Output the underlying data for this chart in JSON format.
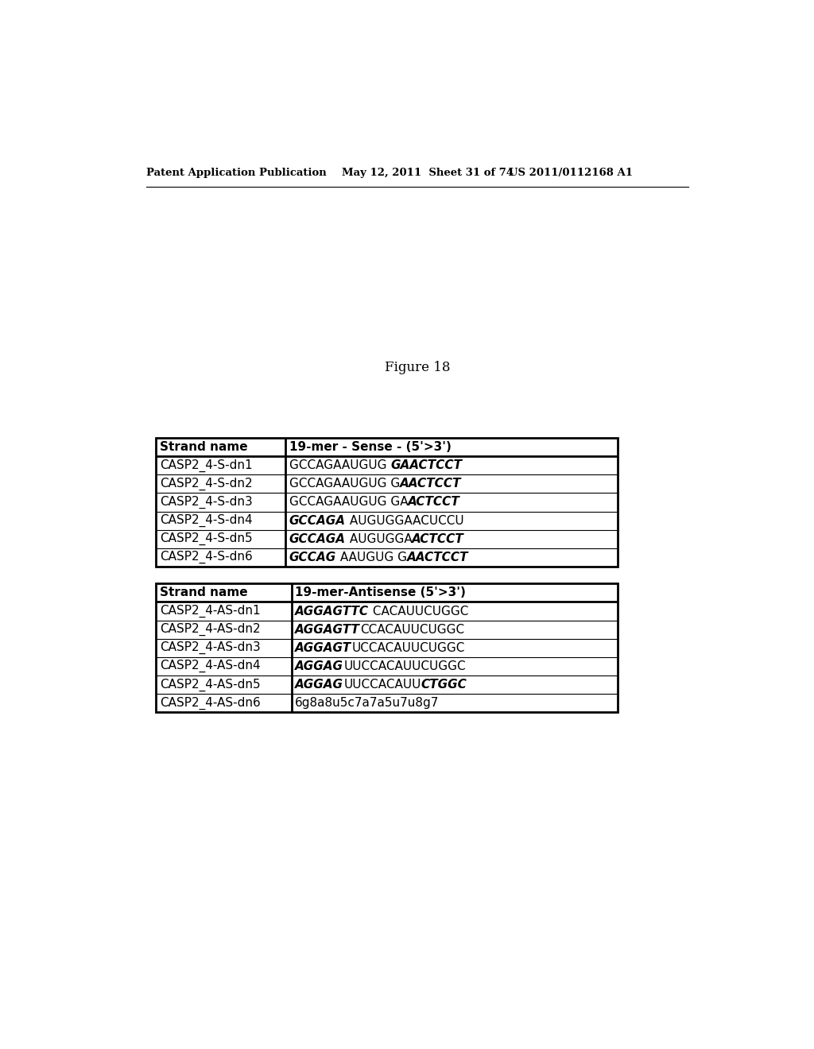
{
  "header_left": "Patent Application Publication",
  "header_mid": "May 12, 2011  Sheet 31 of 74",
  "header_right": "US 2011/0112168 A1",
  "figure_label": "Figure 18",
  "table1_header": [
    "Strand name",
    "19-mer - Sense - (5'>3')"
  ],
  "table1_col1": [
    "CASP2_4-S-dn1",
    "CASP2_4-S-dn2",
    "CASP2_4-S-dn3",
    "CASP2_4-S-dn4",
    "CASP2_4-S-dn5",
    "CASP2_4-S-dn6"
  ],
  "table1_seq": [
    [
      [
        "GCCAGAAUGUG ",
        false
      ],
      [
        "GAACTCCT",
        true
      ]
    ],
    [
      [
        "GCCAGAAUGUG G",
        false
      ],
      [
        "AACTCCT",
        true
      ]
    ],
    [
      [
        "GCCAGAAUGUG GA",
        false
      ],
      [
        "ACTCCT",
        true
      ]
    ],
    [
      [
        "GCCAGA",
        true
      ],
      [
        " AUGUGGAACUCCU",
        false
      ]
    ],
    [
      [
        "GCCAGA",
        true
      ],
      [
        " AUGUGGA",
        false
      ],
      [
        "ACTCCT",
        true
      ]
    ],
    [
      [
        "GCCAG",
        true
      ],
      [
        " AAUGUG G",
        false
      ],
      [
        "AACTCCT",
        true
      ]
    ]
  ],
  "table2_header": [
    "Strand name",
    "19-mer-Antisense (5'>3')"
  ],
  "table2_col1": [
    "CASP2_4-AS-dn1",
    "CASP2_4-AS-dn2",
    "CASP2_4-AS-dn3",
    "CASP2_4-AS-dn4",
    "CASP2_4-AS-dn5",
    "CASP2_4-AS-dn6"
  ],
  "table2_seq": [
    [
      [
        "AGGAGTTC",
        true
      ],
      [
        " CACAUUCUGGC",
        false
      ]
    ],
    [
      [
        "AGGAGTT",
        true
      ],
      [
        "CCACAUUCUGGC",
        false
      ]
    ],
    [
      [
        "AGGAGT",
        true
      ],
      [
        "UCCACAUUCUGGC",
        false
      ]
    ],
    [
      [
        "AGGAG",
        true
      ],
      [
        "UUCCACAUUCUGGC",
        false
      ]
    ],
    [
      [
        "AGGAG",
        true
      ],
      [
        "UUCCACAUU",
        false
      ],
      [
        "CTGGC",
        true
      ]
    ],
    [
      [
        "6g8a8u5c7a7a5u7u8g7",
        false
      ]
    ]
  ],
  "bg_color": "#ffffff",
  "text_color": "#000000",
  "header_fontsize": 9.5,
  "table_fontsize": 11,
  "fig_label_fontsize": 12
}
